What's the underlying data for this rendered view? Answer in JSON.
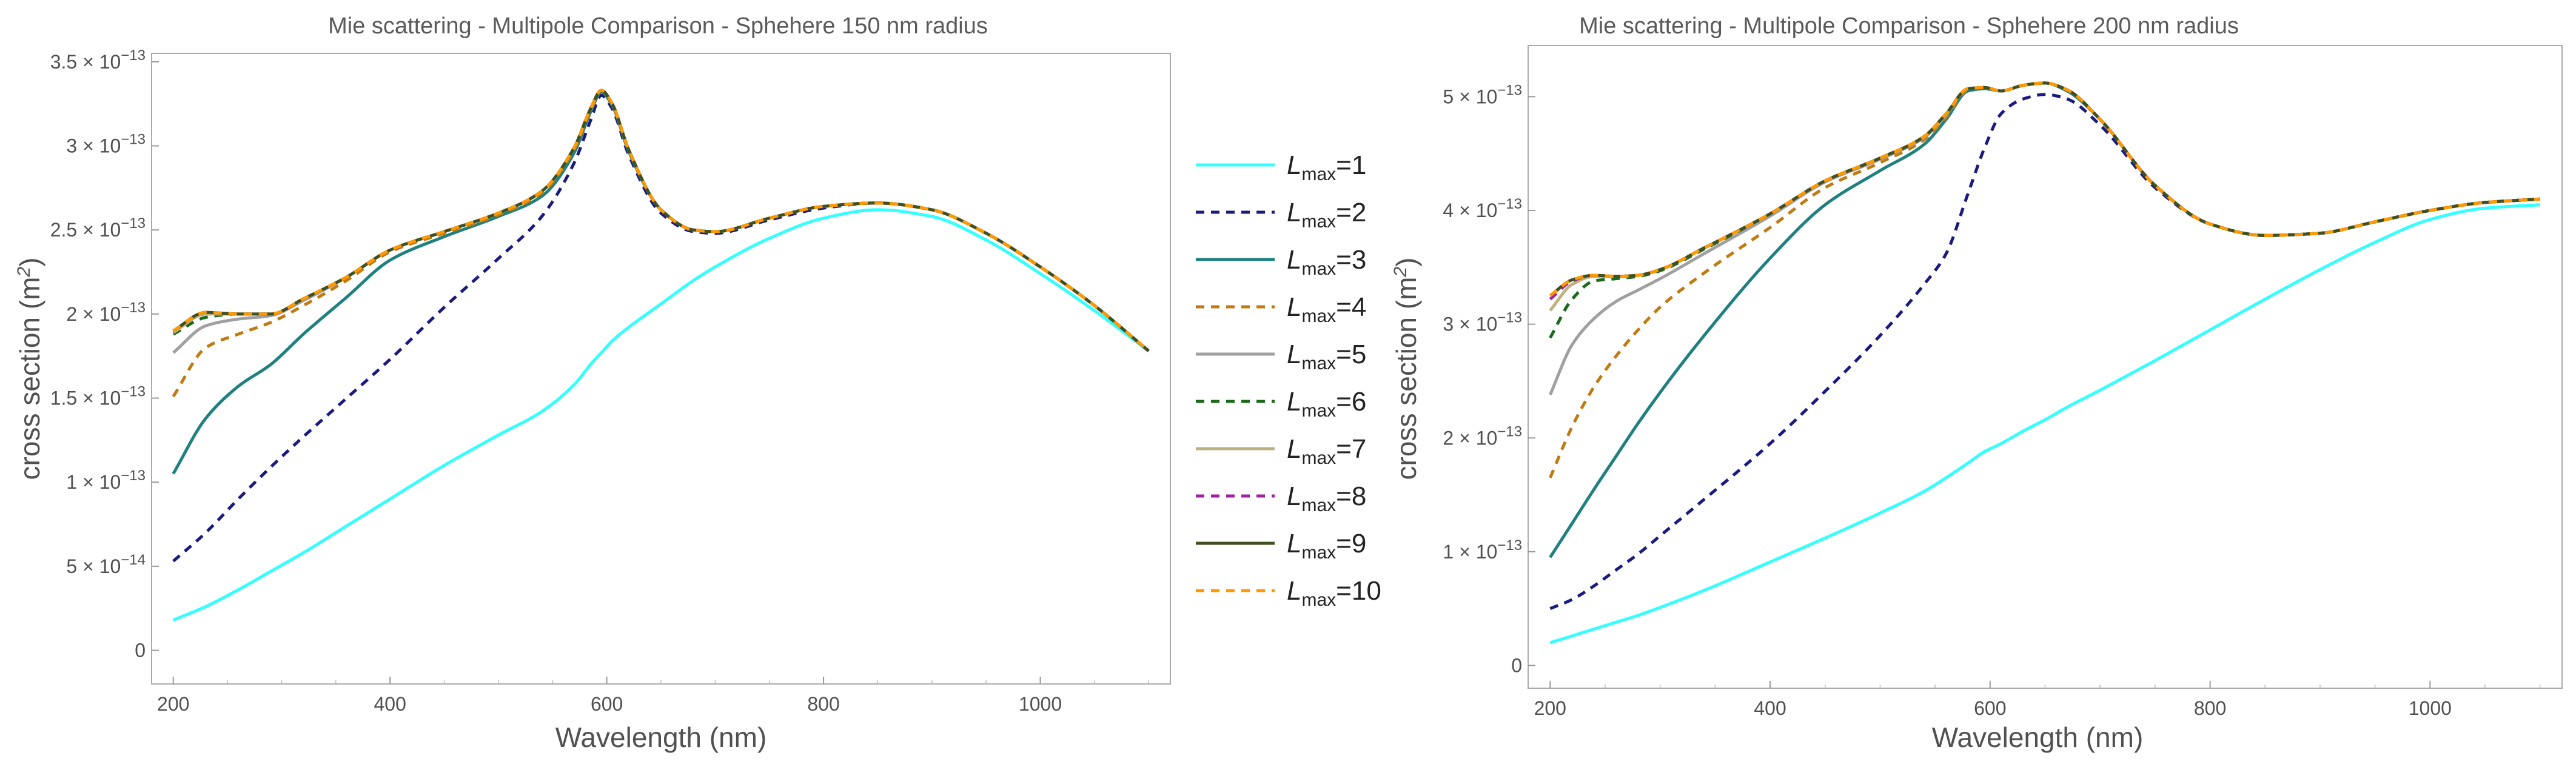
{
  "charts": [
    {
      "title": "Mie scattering - Multipole Comparison - Sphehere 150 nm radius",
      "xlabel": "Wavelength (nm)",
      "ylabel": "cross section (m",
      "ylabel_sup": "2",
      "ylabel_close": ")",
      "x_ticks": [
        200,
        400,
        600,
        800,
        1000
      ],
      "y_ticks": [
        {
          "mant": "0",
          "exp": ""
        },
        {
          "mant": "5 × 10",
          "exp": "−14"
        },
        {
          "mant": "1 × 10",
          "exp": "−13"
        },
        {
          "mant": "1.5 × 10",
          "exp": "−13"
        },
        {
          "mant": "2 × 10",
          "exp": "−13"
        },
        {
          "mant": "2.5 × 10",
          "exp": "−13"
        },
        {
          "mant": "3 × 10",
          "exp": "−13"
        },
        {
          "mant": "3.5 × 10",
          "exp": "−13"
        }
      ]
    },
    {
      "title": "Mie scattering - Multipole Comparison - Sphehere 200 nm radius",
      "xlabel": "Wavelength (nm)",
      "ylabel": "cross section (m",
      "ylabel_sup": "2",
      "ylabel_close": ")",
      "x_ticks": [
        200,
        400,
        600,
        800,
        1000
      ],
      "y_ticks": [
        {
          "mant": "0",
          "exp": ""
        },
        {
          "mant": "1 × 10",
          "exp": "−13"
        },
        {
          "mant": "2 × 10",
          "exp": "−13"
        },
        {
          "mant": "3 × 10",
          "exp": "−13"
        },
        {
          "mant": "4 × 10",
          "exp": "−13"
        },
        {
          "mant": "5 × 10",
          "exp": "−13"
        }
      ]
    }
  ],
  "legend": {
    "entries": [
      {
        "base": "L",
        "sub": "max",
        "label": "=1",
        "color": "#33ffff",
        "dashed": false
      },
      {
        "base": "L",
        "sub": "max",
        "label": "=2",
        "color": "#1a1a80",
        "dashed": true
      },
      {
        "base": "L",
        "sub": "max",
        "label": "=3",
        "color": "#1f8080",
        "dashed": false
      },
      {
        "base": "L",
        "sub": "max",
        "label": "=4",
        "color": "#c07a10",
        "dashed": true
      },
      {
        "base": "L",
        "sub": "max",
        "label": "=5",
        "color": "#a0a0a0",
        "dashed": false
      },
      {
        "base": "L",
        "sub": "max",
        "label": "=6",
        "color": "#1a6a1a",
        "dashed": true
      },
      {
        "base": "L",
        "sub": "max",
        "label": "=7",
        "color": "#c0b080",
        "dashed": false
      },
      {
        "base": "L",
        "sub": "max",
        "label": "=8",
        "color": "#a020a0",
        "dashed": true
      },
      {
        "base": "L",
        "sub": "max",
        "label": "=9",
        "color": "#405020",
        "dashed": false
      },
      {
        "base": "L",
        "sub": "max",
        "label": "=10",
        "color": "#ff9900",
        "dashed": true
      }
    ]
  },
  "chart_data": [
    {
      "type": "line",
      "title": "Mie scattering - Multipole Comparison - Sphehere 150 nm radius",
      "xlabel": "Wavelength (nm)",
      "ylabel": "cross section (m^2)",
      "xlim": [
        180,
        1120
      ],
      "ylim": [
        -2e-14,
        3.55e-13
      ],
      "x": [
        200,
        230,
        260,
        290,
        320,
        360,
        400,
        450,
        500,
        540,
        570,
        585,
        595,
        605,
        620,
        650,
        680,
        700,
        750,
        800,
        850,
        900,
        950,
        1000,
        1050,
        1100
      ],
      "series": [
        {
          "name": "L_max=1",
          "color": "#33ffff",
          "dashed": false,
          "values": [
            1.8e-14,
            2.6e-14,
            3.6e-14,
            4.7e-14,
            5.8e-14,
            7.4e-14,
            9e-14,
            1.1e-13,
            1.28e-13,
            1.42e-13,
            1.58e-13,
            1.7e-13,
            1.77e-13,
            1.84e-13,
            1.92e-13,
            2.06e-13,
            2.2e-13,
            2.28e-13,
            2.45e-13,
            2.57e-13,
            2.62e-13,
            2.58e-13,
            2.44e-13,
            2.24e-13,
            2.02e-13,
            1.78e-13
          ]
        },
        {
          "name": "L_max=2",
          "color": "#1a1a80",
          "dashed": true,
          "values": [
            5.3e-14,
            7e-14,
            9e-14,
            1.09e-13,
            1.27e-13,
            1.5e-13,
            1.73e-13,
            2.04e-13,
            2.33e-13,
            2.58e-13,
            2.9e-13,
            3.15e-13,
            3.3e-13,
            3.22e-13,
            2.95e-13,
            2.6e-13,
            2.49e-13,
            2.48e-13,
            2.56e-13,
            2.63e-13,
            2.66e-13,
            2.62e-13,
            2.48e-13,
            2.28e-13,
            2.05e-13,
            1.78e-13
          ]
        },
        {
          "name": "L_max=3",
          "color": "#1f8080",
          "dashed": false,
          "values": [
            1.05e-13,
            1.38e-13,
            1.57e-13,
            1.7e-13,
            1.88e-13,
            2.1e-13,
            2.32e-13,
            2.46e-13,
            2.58e-13,
            2.7e-13,
            2.96e-13,
            3.2e-13,
            3.32e-13,
            3.24e-13,
            2.97e-13,
            2.62e-13,
            2.5e-13,
            2.49e-13,
            2.57e-13,
            2.64e-13,
            2.66e-13,
            2.62e-13,
            2.48e-13,
            2.28e-13,
            2.05e-13,
            1.78e-13
          ]
        },
        {
          "name": "L_max=4",
          "color": "#c07a10",
          "dashed": true,
          "values": [
            1.51e-13,
            1.8e-13,
            1.88e-13,
            1.95e-13,
            2.05e-13,
            2.2e-13,
            2.37e-13,
            2.48e-13,
            2.59e-13,
            2.72e-13,
            2.98e-13,
            3.21e-13,
            3.33e-13,
            3.25e-13,
            2.98e-13,
            2.62e-13,
            2.5e-13,
            2.49e-13,
            2.57e-13,
            2.64e-13,
            2.66e-13,
            2.62e-13,
            2.48e-13,
            2.28e-13,
            2.05e-13,
            1.78e-13
          ]
        },
        {
          "name": "L_max=5",
          "color": "#a0a0a0",
          "dashed": false,
          "values": [
            1.77e-13,
            1.93e-13,
            1.97e-13,
            1.99e-13,
            2.08e-13,
            2.22e-13,
            2.38e-13,
            2.49e-13,
            2.6e-13,
            2.73e-13,
            2.99e-13,
            3.22e-13,
            3.33e-13,
            3.25e-13,
            2.98e-13,
            2.62e-13,
            2.5e-13,
            2.49e-13,
            2.57e-13,
            2.64e-13,
            2.66e-13,
            2.62e-13,
            2.48e-13,
            2.28e-13,
            2.05e-13,
            1.78e-13
          ]
        },
        {
          "name": "L_max=6",
          "color": "#1a6a1a",
          "dashed": true,
          "values": [
            1.88e-13,
            1.98e-13,
            2e-13,
            2e-13,
            2.09e-13,
            2.22e-13,
            2.38e-13,
            2.49e-13,
            2.6e-13,
            2.73e-13,
            2.99e-13,
            3.22e-13,
            3.33e-13,
            3.25e-13,
            2.98e-13,
            2.62e-13,
            2.5e-13,
            2.49e-13,
            2.57e-13,
            2.64e-13,
            2.66e-13,
            2.62e-13,
            2.48e-13,
            2.28e-13,
            2.05e-13,
            1.78e-13
          ]
        },
        {
          "name": "L_max=7",
          "color": "#c0b080",
          "dashed": false,
          "values": [
            1.89e-13,
            2e-13,
            2e-13,
            2e-13,
            2.09e-13,
            2.22e-13,
            2.38e-13,
            2.49e-13,
            2.6e-13,
            2.73e-13,
            2.99e-13,
            3.22e-13,
            3.33e-13,
            3.25e-13,
            2.98e-13,
            2.62e-13,
            2.5e-13,
            2.49e-13,
            2.57e-13,
            2.64e-13,
            2.66e-13,
            2.62e-13,
            2.48e-13,
            2.28e-13,
            2.05e-13,
            1.78e-13
          ]
        },
        {
          "name": "L_max=8",
          "color": "#a020a0",
          "dashed": true,
          "values": [
            1.9e-13,
            2.01e-13,
            2e-13,
            2e-13,
            2.09e-13,
            2.22e-13,
            2.38e-13,
            2.49e-13,
            2.6e-13,
            2.73e-13,
            2.99e-13,
            3.22e-13,
            3.33e-13,
            3.25e-13,
            2.98e-13,
            2.62e-13,
            2.5e-13,
            2.49e-13,
            2.57e-13,
            2.64e-13,
            2.66e-13,
            2.62e-13,
            2.48e-13,
            2.28e-13,
            2.05e-13,
            1.78e-13
          ]
        },
        {
          "name": "L_max=9",
          "color": "#405020",
          "dashed": false,
          "values": [
            1.9e-13,
            2.01e-13,
            2e-13,
            2e-13,
            2.09e-13,
            2.22e-13,
            2.38e-13,
            2.49e-13,
            2.6e-13,
            2.73e-13,
            2.99e-13,
            3.22e-13,
            3.33e-13,
            3.25e-13,
            2.98e-13,
            2.62e-13,
            2.5e-13,
            2.49e-13,
            2.57e-13,
            2.64e-13,
            2.66e-13,
            2.62e-13,
            2.48e-13,
            2.28e-13,
            2.05e-13,
            1.78e-13
          ]
        },
        {
          "name": "L_max=10",
          "color": "#ff9900",
          "dashed": true,
          "values": [
            1.9e-13,
            2.01e-13,
            2e-13,
            2e-13,
            2.09e-13,
            2.22e-13,
            2.38e-13,
            2.49e-13,
            2.6e-13,
            2.73e-13,
            2.99e-13,
            3.22e-13,
            3.33e-13,
            3.25e-13,
            2.98e-13,
            2.62e-13,
            2.5e-13,
            2.49e-13,
            2.57e-13,
            2.64e-13,
            2.66e-13,
            2.62e-13,
            2.48e-13,
            2.28e-13,
            2.05e-13,
            1.78e-13
          ]
        }
      ]
    },
    {
      "type": "line",
      "title": "Mie scattering - Multipole Comparison - Sphehere 200 nm radius",
      "xlabel": "Wavelength (nm)",
      "ylabel": "cross section (m^2)",
      "xlim": [
        180,
        1120
      ],
      "ylim": [
        -2e-14,
        5.45e-13
      ],
      "x": [
        200,
        220,
        240,
        260,
        280,
        300,
        340,
        400,
        450,
        500,
        540,
        560,
        580,
        595,
        610,
        630,
        650,
        670,
        700,
        750,
        800,
        850,
        900,
        950,
        1000,
        1050,
        1100
      ],
      "series": [
        {
          "name": "L_max=1",
          "color": "#33ffff",
          "dashed": false,
          "values": [
            2e-14,
            2.6e-14,
            3.2e-14,
            3.8e-14,
            4.4e-14,
            5.1e-14,
            6.6e-14,
            9.1e-14,
            1.12e-13,
            1.34e-13,
            1.53e-13,
            1.65e-13,
            1.78e-13,
            1.88e-13,
            1.95e-13,
            2.06e-13,
            2.16e-13,
            2.27e-13,
            2.42e-13,
            2.68e-13,
            2.95e-13,
            3.22e-13,
            3.48e-13,
            3.72e-13,
            3.92e-13,
            4.02e-13,
            4.05e-13
          ]
        },
        {
          "name": "L_max=2",
          "color": "#1a1a80",
          "dashed": true,
          "values": [
            5e-14,
            5.8e-14,
            7e-14,
            8.4e-14,
            9.8e-14,
            1.14e-13,
            1.46e-13,
            1.95e-13,
            2.41e-13,
            2.9e-13,
            3.35e-13,
            3.62e-13,
            4.15e-13,
            4.55e-13,
            4.85e-13,
            4.98e-13,
            5.02e-13,
            4.98e-13,
            4.75e-13,
            4.2e-13,
            3.88e-13,
            3.78e-13,
            3.8e-13,
            3.9e-13,
            4e-13,
            4.07e-13,
            4.1e-13
          ]
        },
        {
          "name": "L_max=3",
          "color": "#1f8080",
          "dashed": false,
          "values": [
            9.5e-14,
            1.25e-13,
            1.55e-13,
            1.84e-13,
            2.13e-13,
            2.4e-13,
            2.9e-13,
            3.58e-13,
            4.05e-13,
            4.35e-13,
            4.58e-13,
            4.8e-13,
            5.05e-13,
            5.07e-13,
            5.05e-13,
            5.1e-13,
            5.12e-13,
            5.05e-13,
            4.8e-13,
            4.22e-13,
            3.88e-13,
            3.78e-13,
            3.8e-13,
            3.9e-13,
            4e-13,
            4.07e-13,
            4.1e-13
          ]
        },
        {
          "name": "L_max=4",
          "color": "#c07a10",
          "dashed": true,
          "values": [
            1.65e-13,
            2.1e-13,
            2.45e-13,
            2.72e-13,
            2.95e-13,
            3.15e-13,
            3.45e-13,
            3.85e-13,
            4.2e-13,
            4.42e-13,
            4.62e-13,
            4.82e-13,
            5.06e-13,
            5.08e-13,
            5.05e-13,
            5.1e-13,
            5.12e-13,
            5.06e-13,
            4.8e-13,
            4.22e-13,
            3.88e-13,
            3.78e-13,
            3.8e-13,
            3.9e-13,
            4e-13,
            4.07e-13,
            4.1e-13
          ]
        },
        {
          "name": "L_max=5",
          "color": "#a0a0a0",
          "dashed": false,
          "values": [
            2.38e-13,
            2.82e-13,
            3.05e-13,
            3.2e-13,
            3.3e-13,
            3.4e-13,
            3.62e-13,
            3.95e-13,
            4.25e-13,
            4.45e-13,
            4.64e-13,
            4.84e-13,
            5.07e-13,
            5.08e-13,
            5.05e-13,
            5.1e-13,
            5.12e-13,
            5.06e-13,
            4.8e-13,
            4.22e-13,
            3.88e-13,
            3.78e-13,
            3.8e-13,
            3.9e-13,
            4e-13,
            4.07e-13,
            4.1e-13
          ]
        },
        {
          "name": "L_max=6",
          "color": "#1a6a1a",
          "dashed": true,
          "values": [
            2.88e-13,
            3.22e-13,
            3.38e-13,
            3.4e-13,
            3.42e-13,
            3.47e-13,
            3.66e-13,
            3.97e-13,
            4.26e-13,
            4.46e-13,
            4.65e-13,
            4.85e-13,
            5.07e-13,
            5.08e-13,
            5.05e-13,
            5.1e-13,
            5.12e-13,
            5.06e-13,
            4.8e-13,
            4.22e-13,
            3.88e-13,
            3.78e-13,
            3.8e-13,
            3.9e-13,
            4e-13,
            4.07e-13,
            4.1e-13
          ]
        },
        {
          "name": "L_max=7",
          "color": "#c0b080",
          "dashed": false,
          "values": [
            3.12e-13,
            3.35e-13,
            3.42e-13,
            3.42e-13,
            3.43e-13,
            3.48e-13,
            3.67e-13,
            3.97e-13,
            4.26e-13,
            4.46e-13,
            4.65e-13,
            4.85e-13,
            5.07e-13,
            5.08e-13,
            5.05e-13,
            5.1e-13,
            5.12e-13,
            5.06e-13,
            4.8e-13,
            4.22e-13,
            3.88e-13,
            3.78e-13,
            3.8e-13,
            3.9e-13,
            4e-13,
            4.07e-13,
            4.1e-13
          ]
        },
        {
          "name": "L_max=8",
          "color": "#a020a0",
          "dashed": true,
          "values": [
            3.22e-13,
            3.38e-13,
            3.43e-13,
            3.42e-13,
            3.43e-13,
            3.48e-13,
            3.67e-13,
            3.97e-13,
            4.26e-13,
            4.46e-13,
            4.65e-13,
            4.85e-13,
            5.07e-13,
            5.08e-13,
            5.05e-13,
            5.1e-13,
            5.12e-13,
            5.06e-13,
            4.8e-13,
            4.22e-13,
            3.88e-13,
            3.78e-13,
            3.8e-13,
            3.9e-13,
            4e-13,
            4.07e-13,
            4.1e-13
          ]
        },
        {
          "name": "L_max=9",
          "color": "#405020",
          "dashed": false,
          "values": [
            3.25e-13,
            3.39e-13,
            3.43e-13,
            3.42e-13,
            3.43e-13,
            3.48e-13,
            3.67e-13,
            3.97e-13,
            4.26e-13,
            4.46e-13,
            4.65e-13,
            4.85e-13,
            5.07e-13,
            5.08e-13,
            5.05e-13,
            5.1e-13,
            5.12e-13,
            5.06e-13,
            4.8e-13,
            4.22e-13,
            3.88e-13,
            3.78e-13,
            3.8e-13,
            3.9e-13,
            4e-13,
            4.07e-13,
            4.1e-13
          ]
        },
        {
          "name": "L_max=10",
          "color": "#ff9900",
          "dashed": true,
          "values": [
            3.25e-13,
            3.39e-13,
            3.43e-13,
            3.42e-13,
            3.43e-13,
            3.48e-13,
            3.67e-13,
            3.97e-13,
            4.26e-13,
            4.46e-13,
            4.65e-13,
            4.85e-13,
            5.07e-13,
            5.08e-13,
            5.05e-13,
            5.1e-13,
            5.12e-13,
            5.06e-13,
            4.8e-13,
            4.22e-13,
            3.88e-13,
            3.78e-13,
            3.8e-13,
            3.9e-13,
            4e-13,
            4.07e-13,
            4.1e-13
          ]
        }
      ]
    }
  ]
}
